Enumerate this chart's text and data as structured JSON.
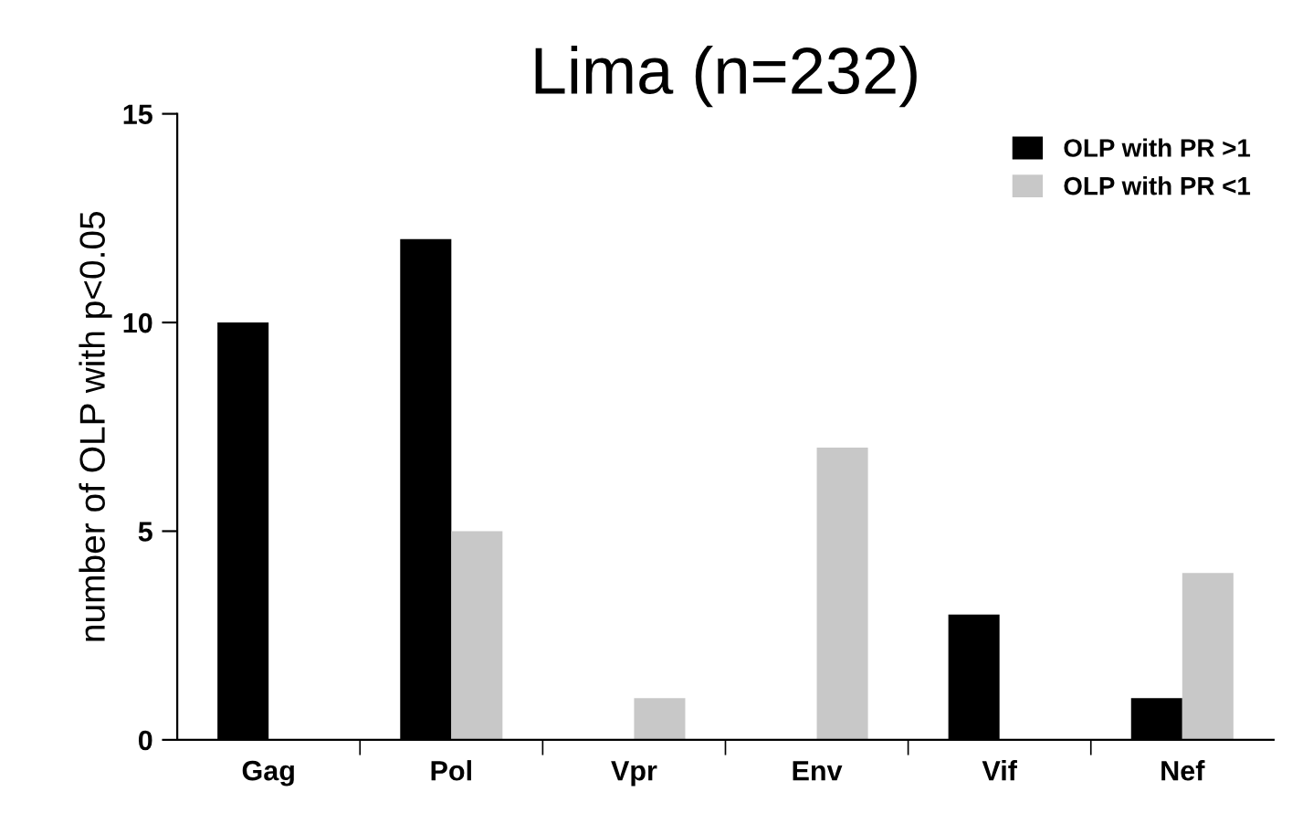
{
  "chart_data": {
    "type": "bar",
    "title": "Lima (n=232)",
    "ylabel": "number of OLP with p<0.05",
    "categories": [
      "Gag",
      "Pol",
      "Vpr",
      "Env",
      "Vif",
      "Nef"
    ],
    "series": [
      {
        "name": "OLP with PR >1",
        "color": "#000000",
        "values": [
          10,
          12,
          0,
          0,
          3,
          1
        ]
      },
      {
        "name": "OLP with PR <1",
        "color": "#c8c8c8",
        "values": [
          0,
          5,
          1,
          7,
          0,
          4
        ]
      }
    ],
    "ylim": [
      0,
      15
    ],
    "yticks": [
      0,
      5,
      10,
      15
    ],
    "grid": false,
    "legend": "top right"
  }
}
